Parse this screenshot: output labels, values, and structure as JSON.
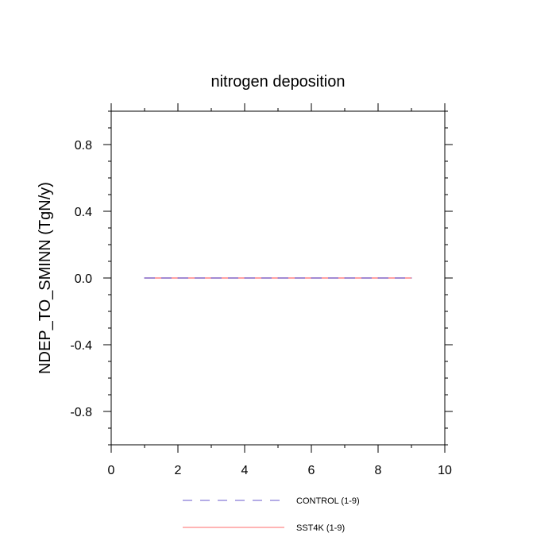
{
  "chart_data": {
    "type": "line",
    "title": "nitrogen deposition",
    "xlabel": "",
    "ylabel": "NDEP_TO_SMINN  (TgN/y)",
    "xlim": [
      0,
      10
    ],
    "ylim": [
      -1,
      1
    ],
    "x_ticks": [
      0,
      2,
      4,
      6,
      8,
      10
    ],
    "x_tick_labels": [
      "0",
      "2",
      "4",
      "6",
      "8",
      "10"
    ],
    "y_ticks": [
      0.8,
      0.4,
      0.0,
      -0.4,
      -0.8
    ],
    "y_tick_labels": [
      "0.8",
      "0.4",
      "0.0",
      "-0.4",
      "-0.8"
    ],
    "grid": false,
    "legend_position": "bottom",
    "x": [
      1,
      2,
      3,
      4,
      5,
      6,
      7,
      8,
      9
    ],
    "series": [
      {
        "name": "CONTROL (1-9)",
        "color": "#6a5acd",
        "dash": "dashed",
        "values": [
          0,
          0,
          0,
          0,
          0,
          0,
          0,
          0,
          0
        ]
      },
      {
        "name": "SST4K (1-9)",
        "color": "#ff6b6b",
        "dash": "solid",
        "values": [
          0,
          0,
          0,
          0,
          0,
          0,
          0,
          0,
          0
        ]
      }
    ]
  }
}
